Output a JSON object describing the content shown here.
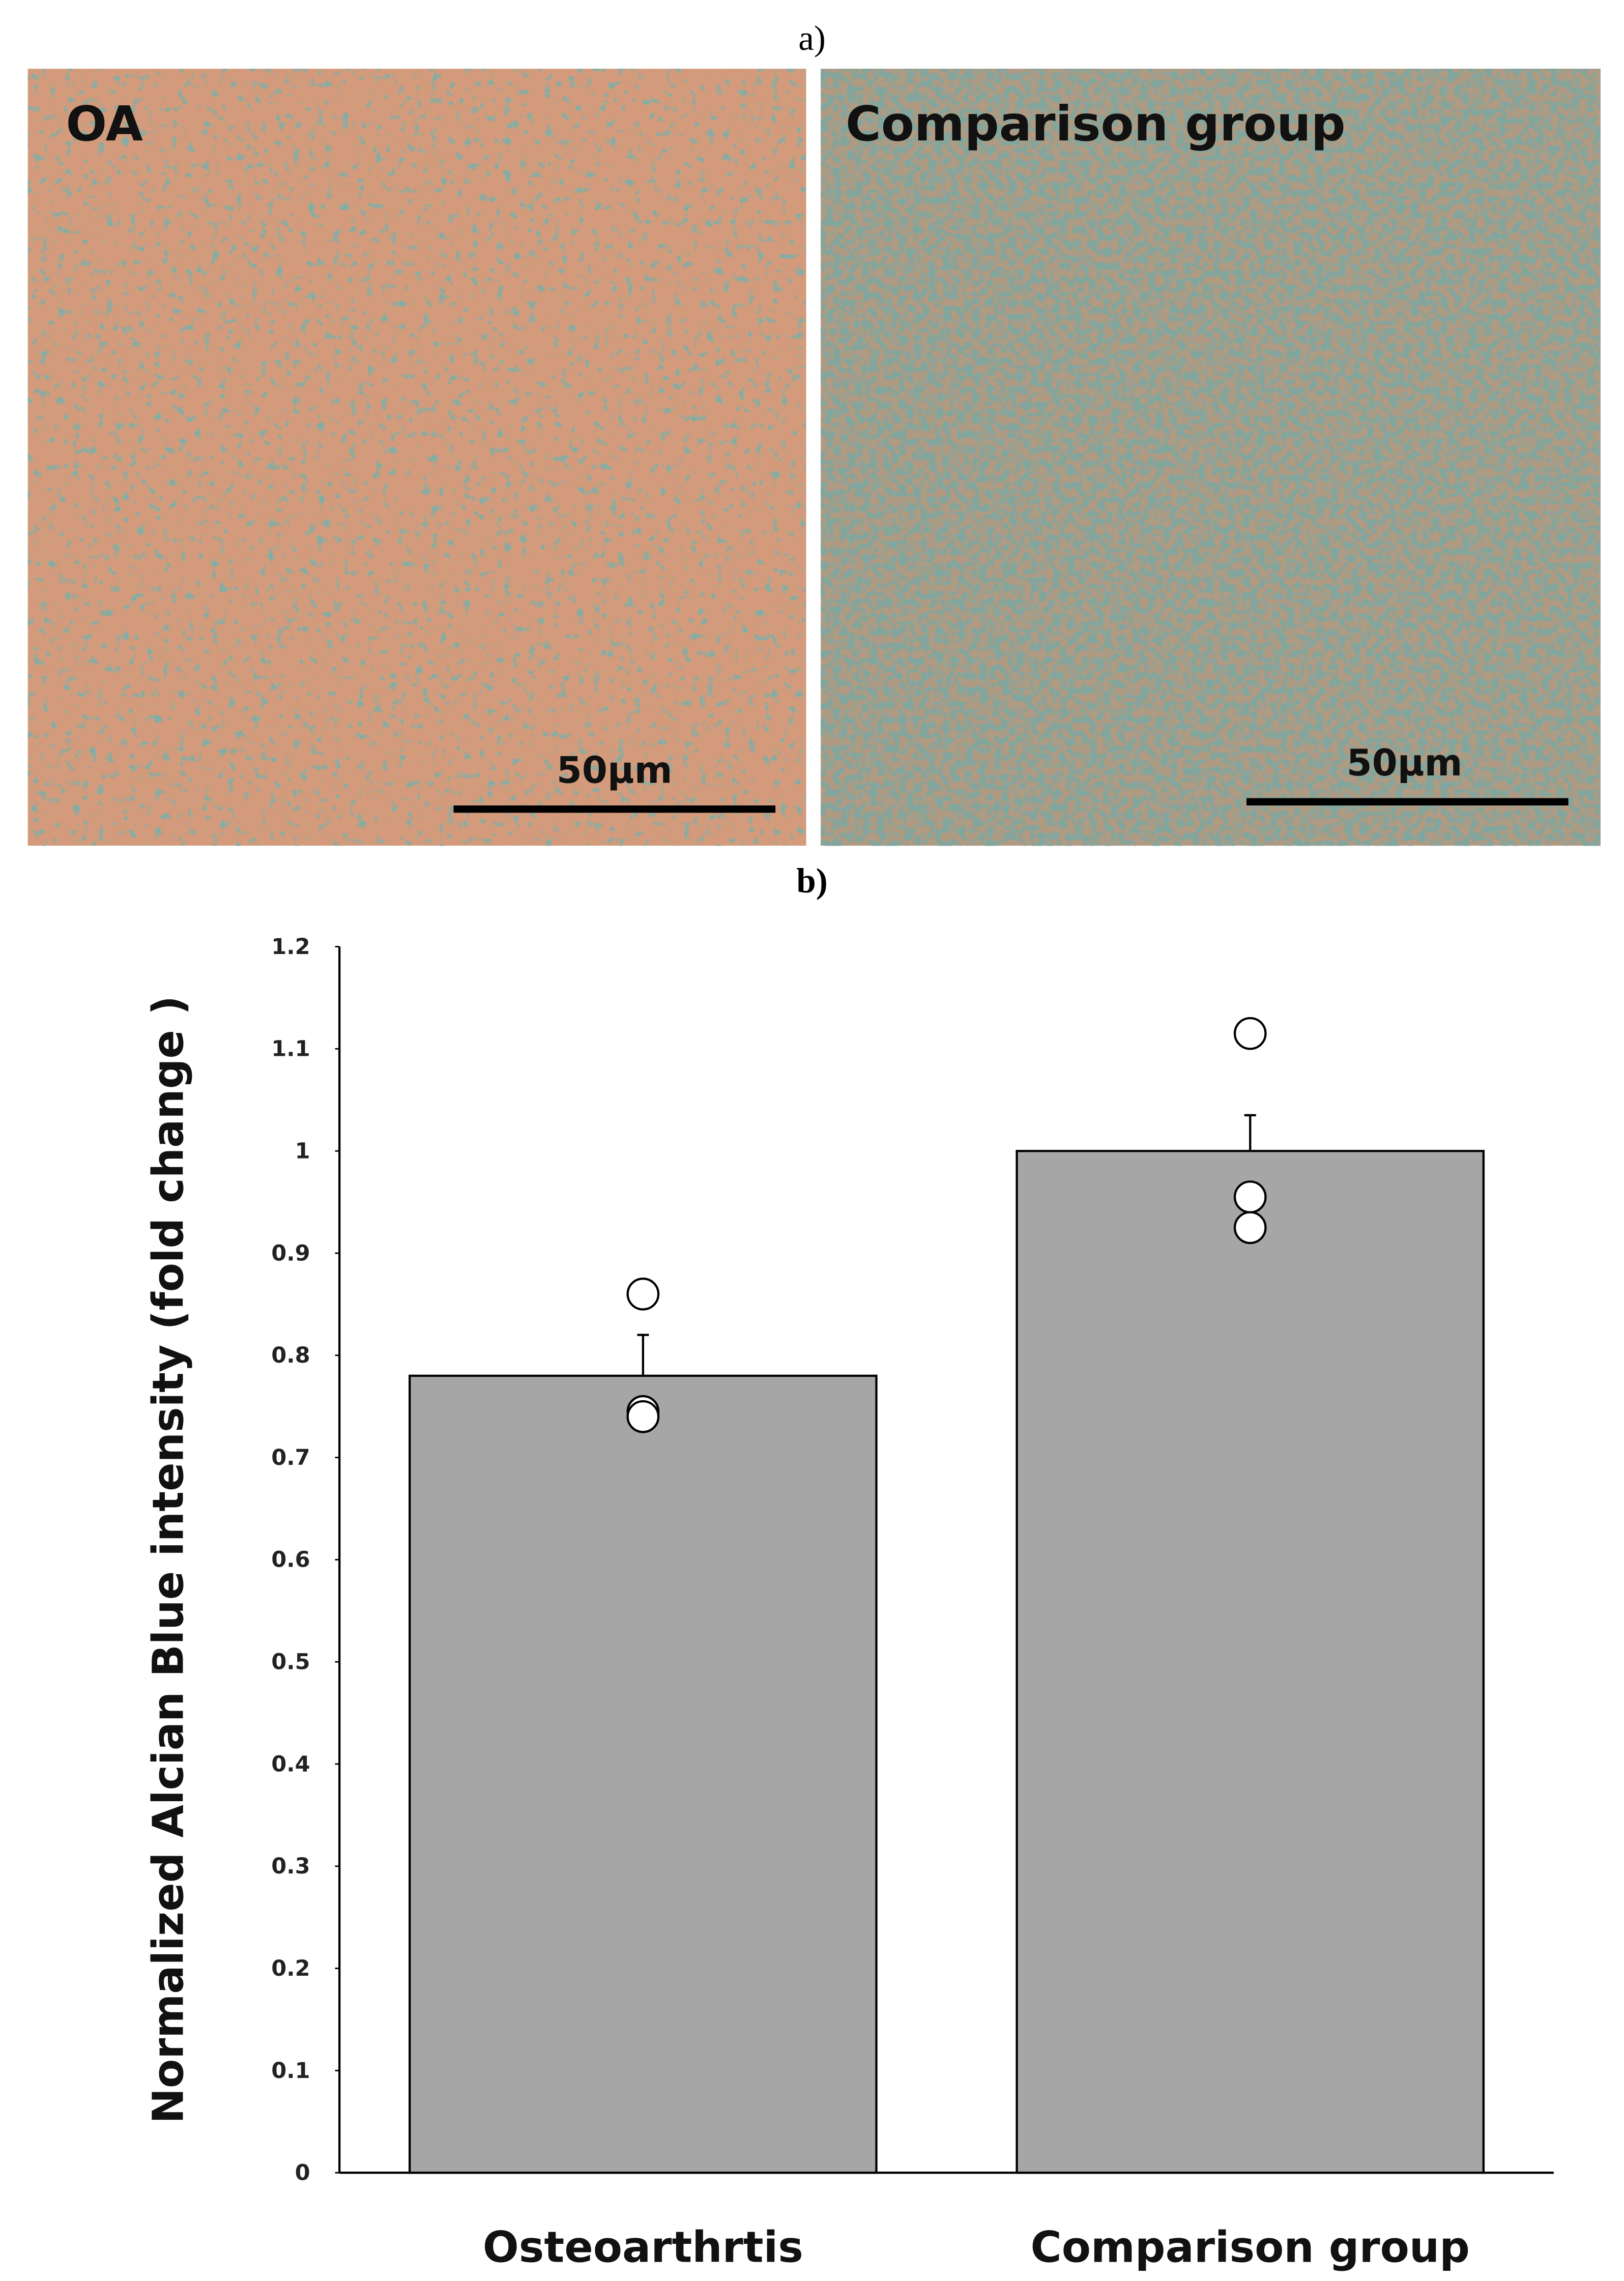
{
  "panel_a": {
    "label": "a)",
    "images": [
      {
        "label": "OA",
        "scale_bar": "50μm"
      },
      {
        "label": "Comparison group",
        "scale_bar": "50μm"
      }
    ]
  },
  "chart_data": {
    "type": "bar",
    "panel_label": "b)",
    "y_label": "Normalized Alcian Blue intensity (fold change )",
    "categories": [
      "Osteoarthrtis",
      "Comparison group"
    ],
    "values": [
      0.78,
      1.0
    ],
    "errors": [
      0.04,
      0.035
    ],
    "points": [
      [
        0.86,
        0.745,
        0.74
      ],
      [
        1.115,
        0.955,
        0.925
      ]
    ],
    "color": "#a6a6a6",
    "ylim": [
      0,
      1.2
    ],
    "yticks": [
      0,
      0.1,
      0.2,
      0.3,
      0.4,
      0.5,
      0.6,
      0.7,
      0.8,
      0.9,
      1,
      1.1,
      1.2
    ]
  }
}
